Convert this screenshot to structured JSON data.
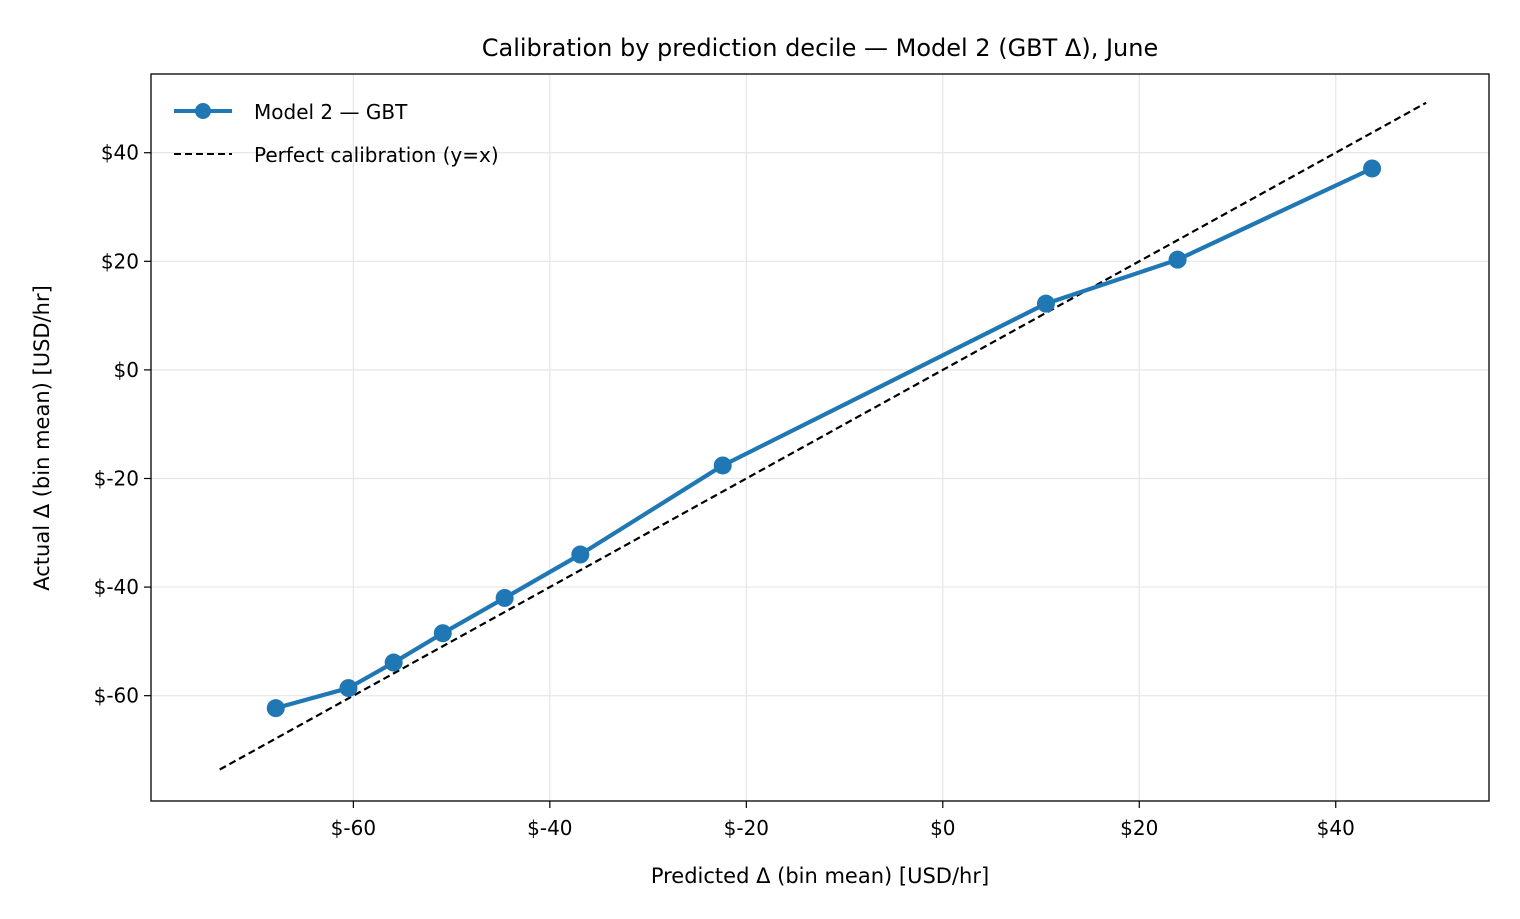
{
  "chart_data": {
    "type": "line",
    "title": "Calibration by prediction decile — Model 2 (GBT Δ), June",
    "xlabel": "Predicted Δ  (bin mean)  [USD/hr]",
    "ylabel": "Actual Δ  (bin mean)  [USD/hr]",
    "xlim": [
      -80.6,
      55.6
    ],
    "ylim": [
      -79.4,
      54.5
    ],
    "x_ticks": [
      -60,
      -40,
      -20,
      0,
      20,
      40
    ],
    "x_tick_labels": [
      "$-60",
      "$-40",
      "$-20",
      "$0",
      "$20",
      "$40"
    ],
    "y_ticks": [
      -60,
      -40,
      -20,
      0,
      20,
      40
    ],
    "y_tick_labels": [
      "$-60",
      "$-40",
      "$-20",
      "$0",
      "$20",
      "$40"
    ],
    "grid": true,
    "legend_position": "top-left",
    "series": [
      {
        "name": "Model 2 — GBT",
        "style": "solid line with circle markers",
        "color": "#1f77b4",
        "x": [
          -67.9,
          -60.5,
          -55.9,
          -50.9,
          -44.6,
          -36.9,
          -22.4,
          10.5,
          23.9,
          43.7
        ],
        "y": [
          -62.3,
          -58.6,
          -53.9,
          -48.5,
          -42.0,
          -34.0,
          -17.6,
          12.2,
          20.3,
          37.1
        ]
      },
      {
        "name": "Perfect calibration (y=x)",
        "style": "dashed line",
        "color": "#000000",
        "x": [
          -73.6,
          49.2
        ],
        "y": [
          -73.6,
          49.2
        ]
      }
    ]
  }
}
